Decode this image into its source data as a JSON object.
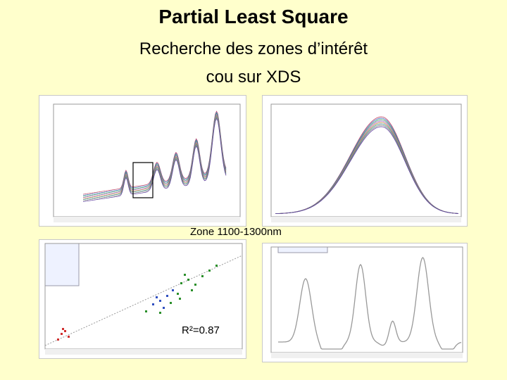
{
  "slide": {
    "title": "Partial Least Square",
    "subtitle_line1": "Recherche des zones d’intérêt",
    "subtitle_line2": "cou sur XDS",
    "zone_label": "Zone 1100-1300nm",
    "r2_label": "R²=0.87"
  },
  "colors": {
    "background": "#ffffcc",
    "panel": "#ffffff",
    "highlight_box": "#000000",
    "calibration": "#2a8f2a",
    "validation": "#3050c0",
    "outlier": "#d03030"
  }
}
